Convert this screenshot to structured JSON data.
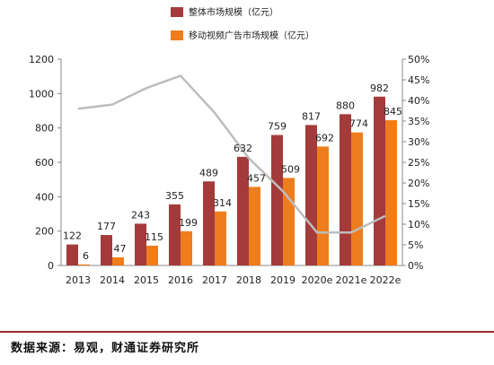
{
  "source": "数据来源：易观，财通证券研究所",
  "colors": {
    "total": "#a53a3a",
    "mobile": "#ee7d1d",
    "line": "#bdbdbd",
    "divider": "#9b2b2b"
  },
  "chart_data": {
    "type": "bar",
    "categories": [
      "2013",
      "2014",
      "2015",
      "2016",
      "2017",
      "2018",
      "2019",
      "2020e",
      "2021e",
      "2022e"
    ],
    "series": [
      {
        "name": "整体市场规模（亿元）",
        "type": "bar",
        "axis": "left",
        "values": [
          122,
          177,
          243,
          355,
          489,
          632,
          759,
          817,
          880,
          982
        ]
      },
      {
        "name": "移动视频广告市场规模（亿元）",
        "type": "bar",
        "axis": "left",
        "values": [
          6,
          47,
          115,
          199,
          314,
          457,
          509,
          692,
          774,
          845
        ]
      },
      {
        "name": "",
        "type": "line",
        "axis": "right",
        "values": [
          38,
          39,
          43,
          46,
          37,
          26,
          18,
          8,
          8,
          12
        ]
      }
    ],
    "yleft": {
      "ticks": [
        "0",
        "200",
        "400",
        "600",
        "800",
        "1000",
        "1200"
      ],
      "lim": [
        0,
        1200
      ]
    },
    "yright": {
      "ticks": [
        "0%",
        "5%",
        "10%",
        "15%",
        "20%",
        "25%",
        "30%",
        "35%",
        "40%",
        "45%",
        "50%"
      ],
      "lim": [
        0,
        50
      ]
    },
    "legend_position": "top-center"
  }
}
